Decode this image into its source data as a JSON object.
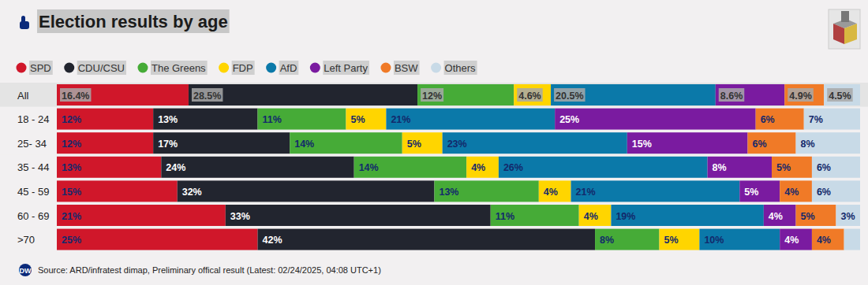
{
  "chart_data": {
    "type": "bar",
    "orientation": "horizontal",
    "stacked": true,
    "data_labels": true,
    "tick_labels": "y",
    "grid": false,
    "legend": "top-left",
    "title": "Election results by age",
    "source": "Source: ARD/infratest dimap, Preliminary offical result (Latest: 02/24/2025, 04:08 UTC+1)",
    "logo": "DW",
    "categories": [
      "All",
      "18 - 24",
      "25- 34",
      "35 - 44",
      "45 - 59",
      "60 - 69",
      ">70"
    ],
    "xlim": [
      0,
      100
    ],
    "series": [
      {
        "name": "SPD",
        "color": "#d0172a",
        "values": [
          16.4,
          12,
          12,
          13,
          15,
          21,
          25
        ],
        "value_labels": [
          "16.4%",
          "12%",
          "12%",
          "13%",
          "15%",
          "21%",
          "25%"
        ]
      },
      {
        "name": "CDU/CSU",
        "color": "#22252f",
        "values": [
          28.5,
          13,
          17,
          24,
          32,
          33,
          42
        ],
        "value_labels": [
          "28.5%",
          "13%",
          "17%",
          "24%",
          "32%",
          "33%",
          "42%"
        ]
      },
      {
        "name": "The Greens",
        "color": "#46ab37",
        "values": [
          12,
          11,
          14,
          14,
          13,
          11,
          8
        ],
        "value_labels": [
          "12%",
          "11%",
          "14%",
          "14%",
          "13%",
          "11%",
          "8%"
        ]
      },
      {
        "name": "FDP",
        "color": "#ffd500",
        "values": [
          4.6,
          5,
          5,
          4,
          4,
          4,
          5
        ],
        "value_labels": [
          "4.6%",
          "5%",
          "5%",
          "4%",
          "4%",
          "4%",
          "5%"
        ]
      },
      {
        "name": "AfD",
        "color": "#0b79a9",
        "values": [
          20.5,
          21,
          23,
          26,
          21,
          19,
          10
        ],
        "value_labels": [
          "20.5%",
          "21%",
          "23%",
          "26%",
          "21%",
          "19%",
          "10%"
        ]
      },
      {
        "name": "Left Party",
        "color": "#7a1ba0",
        "values": [
          8.6,
          25,
          15,
          8,
          5,
          4,
          4
        ],
        "value_labels": [
          "8.6%",
          "25%",
          "15%",
          "8%",
          "5%",
          "4%",
          "4%"
        ]
      },
      {
        "name": "BSW",
        "color": "#f07a27",
        "values": [
          4.9,
          6,
          6,
          5,
          4,
          5,
          4
        ],
        "value_labels": [
          "4.9%",
          "6%",
          "6%",
          "5%",
          "4%",
          "5%",
          "4%"
        ]
      },
      {
        "name": "Others",
        "color": "#c8dae7",
        "values": [
          4.5,
          7,
          8,
          6,
          6,
          3,
          2
        ],
        "value_labels": [
          "4.5%",
          "7%",
          "8%",
          "6%",
          "6%",
          "3%",
          null
        ]
      }
    ]
  }
}
